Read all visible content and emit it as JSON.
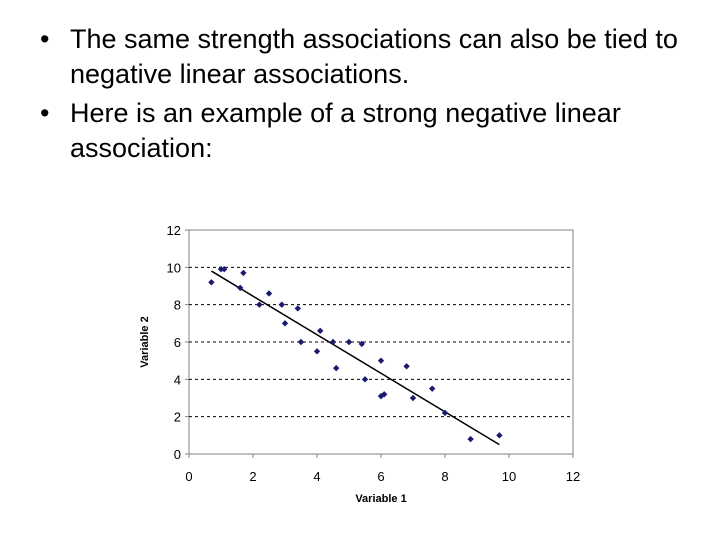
{
  "slide": {
    "bullets": [
      "The same strength associations can also be tied to negative linear associations.",
      "Here is an example of a strong negative linear association:"
    ],
    "bullet_symbol": "•"
  },
  "chart_data": {
    "type": "scatter",
    "xlabel": "Variable 1",
    "ylabel": "Variable 2",
    "xlim": [
      0,
      12
    ],
    "ylim": [
      0,
      12
    ],
    "xticks": [
      0,
      2,
      4,
      6,
      8,
      10,
      12
    ],
    "yticks": [
      0,
      2,
      4,
      6,
      8,
      10,
      12
    ],
    "grid": "horizontal dashed",
    "marker_color": "#1a1a6e",
    "line_color": "#000000",
    "points": [
      {
        "x": 0.7,
        "y": 9.2
      },
      {
        "x": 1.0,
        "y": 9.9
      },
      {
        "x": 1.1,
        "y": 9.9
      },
      {
        "x": 1.6,
        "y": 8.9
      },
      {
        "x": 1.7,
        "y": 9.7
      },
      {
        "x": 2.2,
        "y": 8.0
      },
      {
        "x": 2.5,
        "y": 8.6
      },
      {
        "x": 2.9,
        "y": 8.0
      },
      {
        "x": 3.0,
        "y": 7.0
      },
      {
        "x": 3.4,
        "y": 7.8
      },
      {
        "x": 3.5,
        "y": 6.0
      },
      {
        "x": 4.0,
        "y": 5.5
      },
      {
        "x": 4.1,
        "y": 6.6
      },
      {
        "x": 4.5,
        "y": 6.0
      },
      {
        "x": 4.6,
        "y": 4.6
      },
      {
        "x": 5.0,
        "y": 6.0
      },
      {
        "x": 5.4,
        "y": 5.9
      },
      {
        "x": 5.5,
        "y": 4.0
      },
      {
        "x": 6.0,
        "y": 5.0
      },
      {
        "x": 6.0,
        "y": 3.1
      },
      {
        "x": 6.1,
        "y": 3.2
      },
      {
        "x": 6.8,
        "y": 4.7
      },
      {
        "x": 7.0,
        "y": 3.0
      },
      {
        "x": 7.6,
        "y": 3.5
      },
      {
        "x": 8.0,
        "y": 2.2
      },
      {
        "x": 8.8,
        "y": 0.8
      },
      {
        "x": 9.7,
        "y": 1.0
      }
    ],
    "trendline": {
      "x": [
        0.7,
        9.7
      ],
      "y": [
        9.8,
        0.5
      ]
    }
  }
}
